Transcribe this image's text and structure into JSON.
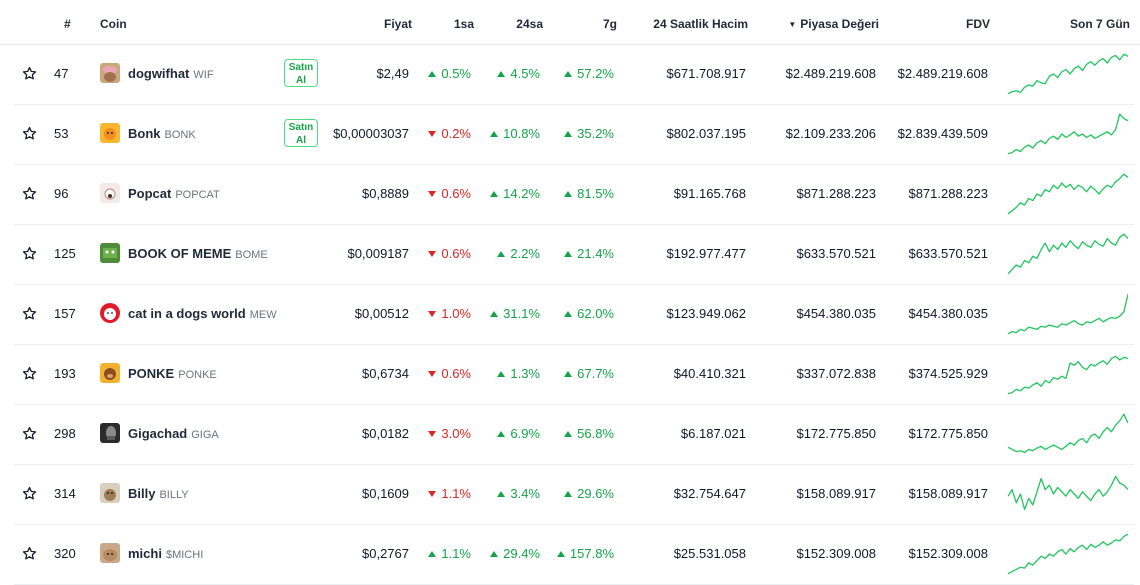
{
  "header": {
    "rank": "#",
    "coin": "Coin",
    "price": "Fiyat",
    "h1": "1sa",
    "h24": "24sa",
    "d7": "7g",
    "volume": "24 Saatlik Hacim",
    "mcap_sort_icon": "▼",
    "mcap": "Piyasa Değeri",
    "fdv": "FDV",
    "last7": "Son 7 Gün"
  },
  "colors": {
    "up": "#16a34a",
    "down": "#dc2626",
    "sparkline": "#22c55e"
  },
  "rows": [
    {
      "rank": "47",
      "name": "dogwifhat",
      "symbol": "WIF",
      "icon": "dogwifhat-logo-icon",
      "buy": true,
      "buy_label": "Satın Al",
      "price": "$2,49",
      "h1": "0.5%",
      "h1_dir": "up",
      "h24": "4.5%",
      "h24_dir": "up",
      "d7": "57.2%",
      "d7_dir": "up",
      "volume": "$671.708.917",
      "mcap": "$2.489.219.608",
      "fdv": "$2.489.219.608",
      "spark": [
        0.05,
        0.1,
        0.12,
        0.08,
        0.2,
        0.25,
        0.22,
        0.35,
        0.3,
        0.28,
        0.45,
        0.5,
        0.42,
        0.55,
        0.6,
        0.5,
        0.62,
        0.68,
        0.58,
        0.72,
        0.78,
        0.7,
        0.8,
        0.85,
        0.75,
        0.88,
        0.92,
        0.82,
        0.95,
        0.9
      ]
    },
    {
      "rank": "53",
      "name": "Bonk",
      "symbol": "BONK",
      "icon": "bonk-logo-icon",
      "buy": true,
      "buy_label": "Satın Al",
      "price": "$0,00003037",
      "h1": "0.2%",
      "h1_dir": "down",
      "h24": "10.8%",
      "h24_dir": "up",
      "d7": "35.2%",
      "d7_dir": "up",
      "volume": "$802.037.195",
      "mcap": "$2.109.233.206",
      "fdv": "$2.839.439.509",
      "spark": [
        0.05,
        0.08,
        0.15,
        0.1,
        0.2,
        0.25,
        0.18,
        0.3,
        0.35,
        0.28,
        0.4,
        0.45,
        0.38,
        0.5,
        0.42,
        0.48,
        0.55,
        0.45,
        0.5,
        0.42,
        0.48,
        0.4,
        0.45,
        0.5,
        0.55,
        0.48,
        0.6,
        0.95,
        0.85,
        0.8
      ]
    },
    {
      "rank": "96",
      "name": "Popcat",
      "symbol": "POPCAT",
      "icon": "popcat-logo-icon",
      "buy": false,
      "buy_label": "",
      "price": "$0,8889",
      "h1": "0.6%",
      "h1_dir": "down",
      "h24": "14.2%",
      "h24_dir": "up",
      "d7": "81.5%",
      "d7_dir": "up",
      "volume": "$91.165.768",
      "mcap": "$871.288.223",
      "fdv": "$871.288.223",
      "spark": [
        0.05,
        0.12,
        0.2,
        0.3,
        0.25,
        0.4,
        0.35,
        0.5,
        0.45,
        0.6,
        0.55,
        0.7,
        0.62,
        0.75,
        0.65,
        0.72,
        0.6,
        0.7,
        0.65,
        0.55,
        0.68,
        0.6,
        0.5,
        0.62,
        0.7,
        0.65,
        0.78,
        0.85,
        0.95,
        0.88
      ]
    },
    {
      "rank": "125",
      "name": "BOOK OF MEME",
      "symbol": "BOME",
      "icon": "bome-logo-icon",
      "buy": false,
      "buy_label": "",
      "price": "$0,009187",
      "h1": "0.6%",
      "h1_dir": "down",
      "h24": "2.2%",
      "h24_dir": "up",
      "d7": "21.4%",
      "d7_dir": "up",
      "volume": "$192.977.477",
      "mcap": "$633.570.521",
      "fdv": "$633.570.521",
      "spark": [
        0.05,
        0.15,
        0.25,
        0.2,
        0.35,
        0.3,
        0.45,
        0.4,
        0.6,
        0.75,
        0.55,
        0.7,
        0.6,
        0.75,
        0.65,
        0.8,
        0.7,
        0.62,
        0.78,
        0.7,
        0.65,
        0.8,
        0.72,
        0.68,
        0.85,
        0.75,
        0.7,
        0.88,
        0.95,
        0.85
      ]
    },
    {
      "rank": "157",
      "name": "cat in a dogs world",
      "symbol": "MEW",
      "icon": "mew-logo-icon",
      "buy": false,
      "buy_label": "",
      "price": "$0,00512",
      "h1": "1.0%",
      "h1_dir": "down",
      "h24": "31.1%",
      "h24_dir": "up",
      "d7": "62.0%",
      "d7_dir": "up",
      "volume": "$123.949.062",
      "mcap": "$454.380.035",
      "fdv": "$454.380.035",
      "spark": [
        0.05,
        0.1,
        0.08,
        0.15,
        0.12,
        0.2,
        0.18,
        0.15,
        0.22,
        0.2,
        0.25,
        0.22,
        0.2,
        0.28,
        0.25,
        0.3,
        0.35,
        0.28,
        0.25,
        0.32,
        0.3,
        0.35,
        0.4,
        0.32,
        0.38,
        0.42,
        0.4,
        0.45,
        0.55,
        0.95
      ]
    },
    {
      "rank": "193",
      "name": "PONKE",
      "symbol": "PONKE",
      "icon": "ponke-logo-icon",
      "buy": false,
      "buy_label": "",
      "price": "$0,6734",
      "h1": "0.6%",
      "h1_dir": "down",
      "h24": "1.3%",
      "h24_dir": "up",
      "d7": "67.7%",
      "d7_dir": "up",
      "volume": "$40.410.321",
      "mcap": "$337.072.838",
      "fdv": "$374.525.929",
      "spark": [
        0.05,
        0.08,
        0.15,
        0.12,
        0.2,
        0.18,
        0.25,
        0.3,
        0.22,
        0.35,
        0.3,
        0.42,
        0.38,
        0.45,
        0.4,
        0.75,
        0.7,
        0.78,
        0.65,
        0.6,
        0.72,
        0.68,
        0.75,
        0.8,
        0.72,
        0.85,
        0.9,
        0.82,
        0.88,
        0.85
      ]
    },
    {
      "rank": "298",
      "name": "Gigachad",
      "symbol": "GIGA",
      "icon": "gigachad-logo-icon",
      "buy": false,
      "buy_label": "",
      "price": "$0,0182",
      "h1": "3.0%",
      "h1_dir": "down",
      "h24": "6.9%",
      "h24_dir": "up",
      "d7": "56.8%",
      "d7_dir": "up",
      "volume": "$6.187.021",
      "mcap": "$172.775.850",
      "fdv": "$172.775.850",
      "spark": [
        0.2,
        0.15,
        0.1,
        0.12,
        0.08,
        0.15,
        0.12,
        0.18,
        0.22,
        0.15,
        0.2,
        0.25,
        0.2,
        0.15,
        0.22,
        0.3,
        0.25,
        0.35,
        0.4,
        0.3,
        0.45,
        0.5,
        0.4,
        0.55,
        0.65,
        0.55,
        0.7,
        0.8,
        0.95,
        0.75
      ]
    },
    {
      "rank": "314",
      "name": "Billy",
      "symbol": "BILLY",
      "icon": "billy-logo-icon",
      "buy": false,
      "buy_label": "",
      "price": "$0,1609",
      "h1": "1.1%",
      "h1_dir": "down",
      "h24": "3.4%",
      "h24_dir": "up",
      "d7": "29.6%",
      "d7_dir": "up",
      "volume": "$32.754.647",
      "mcap": "$158.089.917",
      "fdv": "$158.089.917",
      "spark": [
        0.45,
        0.6,
        0.3,
        0.5,
        0.15,
        0.4,
        0.25,
        0.55,
        0.85,
        0.6,
        0.7,
        0.5,
        0.65,
        0.55,
        0.45,
        0.6,
        0.5,
        0.4,
        0.55,
        0.45,
        0.35,
        0.5,
        0.6,
        0.45,
        0.55,
        0.7,
        0.9,
        0.75,
        0.7,
        0.6
      ]
    },
    {
      "rank": "320",
      "name": "michi",
      "symbol": "$MICHI",
      "icon": "michi-logo-icon",
      "buy": false,
      "buy_label": "",
      "price": "$0,2767",
      "h1": "1.1%",
      "h1_dir": "up",
      "h24": "29.4%",
      "h24_dir": "up",
      "d7": "157.8%",
      "d7_dir": "up",
      "volume": "$25.531.058",
      "mcap": "$152.309.008",
      "fdv": "$152.309.008",
      "spark": [
        0.05,
        0.1,
        0.15,
        0.2,
        0.18,
        0.3,
        0.25,
        0.35,
        0.45,
        0.4,
        0.5,
        0.45,
        0.55,
        0.6,
        0.5,
        0.62,
        0.55,
        0.65,
        0.7,
        0.6,
        0.72,
        0.65,
        0.7,
        0.78,
        0.7,
        0.75,
        0.82,
        0.8,
        0.9,
        0.95
      ]
    }
  ]
}
